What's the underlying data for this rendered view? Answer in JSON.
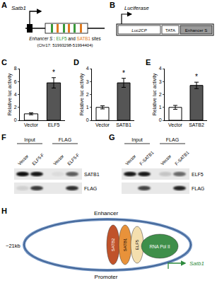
{
  "panels": {
    "A": {
      "label": "A",
      "gene": "Satb1",
      "caption": [
        {
          "text": "Enhancer S"
        },
        {
          "text": " : "
        },
        {
          "text": "ELF5",
          "color": "#3a9a3a"
        },
        {
          "text": " and "
        },
        {
          "text": "SATB1",
          "color": "#e07b20"
        },
        {
          "text": " sites"
        }
      ],
      "coords": "(Chr17: 51993298-51994404)"
    },
    "B": {
      "label": "B",
      "reporter": "Luciferase",
      "segments": [
        "Luc2CP",
        "TATA",
        "Enhancer S"
      ]
    },
    "F": {
      "label": "F",
      "groups": [
        "Input",
        "FLAG"
      ],
      "lanes": [
        "Vector",
        "ELF5-F",
        "Vector",
        "ELF5-F"
      ],
      "rows": [
        "SATB1",
        "FLAG"
      ]
    },
    "G": {
      "label": "G",
      "groups": [
        "Input",
        "FLAG"
      ],
      "lanes": [
        "Vector",
        "F-SATB1",
        "Vector",
        "F-SATB1"
      ],
      "rows": [
        "ELF5",
        "FLAG"
      ]
    },
    "H": {
      "label": "H",
      "enhancer": "Enhancer",
      "promoter": "Promoter",
      "distance": "~21kb",
      "gene": "Satb1",
      "proteins": [
        "SATB2",
        "SATB1",
        "ELF5",
        "RNA Pol II"
      ]
    }
  },
  "chart_data": [
    {
      "type": "bar",
      "panel": "C",
      "categories": [
        "Vector",
        "ELF5"
      ],
      "values": [
        1,
        5.8
      ],
      "errors": [
        0.15,
        0.8
      ],
      "colors": [
        "#ffffff",
        "#555555"
      ],
      "ylim": [
        0,
        8
      ],
      "yticks": [
        0,
        2,
        4,
        6,
        8
      ],
      "grid": false,
      "y_label": "Relative luc activity",
      "annotations": [
        {
          "category": "ELF5",
          "text": "*"
        }
      ]
    },
    {
      "type": "bar",
      "panel": "D",
      "categories": [
        "Vector",
        "SATB1"
      ],
      "values": [
        1,
        2.9
      ],
      "errors": [
        0.12,
        0.35
      ],
      "colors": [
        "#ffffff",
        "#555555"
      ],
      "ylim": [
        0,
        4
      ],
      "yticks": [
        0,
        1,
        2,
        3,
        4
      ],
      "grid": false,
      "y_label": "Relative luc activity",
      "annotations": [
        {
          "category": "SATB1",
          "text": "*"
        }
      ]
    },
    {
      "type": "bar",
      "panel": "E",
      "categories": [
        "Vector",
        "SATB2"
      ],
      "values": [
        1,
        2.7
      ],
      "errors": [
        0.15,
        0.25
      ],
      "colors": [
        "#ffffff",
        "#555555"
      ],
      "ylim": [
        0,
        4
      ],
      "yticks": [
        0,
        1,
        2,
        3,
        4
      ],
      "grid": false,
      "y_label": "Relative luc activity",
      "annotations": [
        {
          "category": "SATB2",
          "text": "*"
        }
      ]
    }
  ]
}
